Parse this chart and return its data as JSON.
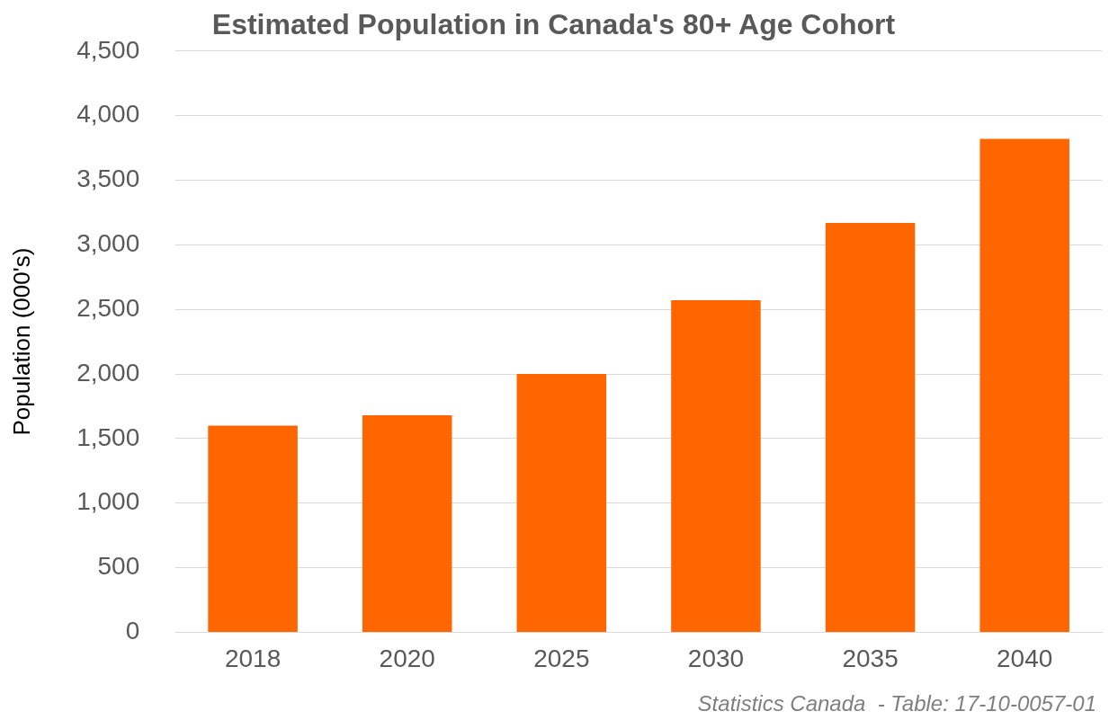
{
  "chart_data": {
    "type": "bar",
    "title": "Estimated Population in Canada's 80+ Age Cohort",
    "ylabel": "Population (000's)",
    "categories": [
      "2018",
      "2020",
      "2025",
      "2030",
      "2035",
      "2040"
    ],
    "values": [
      1600,
      1680,
      2000,
      2570,
      3170,
      3820
    ],
    "color": "#ff6600",
    "ylim": [
      0,
      4500
    ],
    "yticks": [
      {
        "value": 0,
        "label": "0"
      },
      {
        "value": 500,
        "label": "500"
      },
      {
        "value": 1000,
        "label": "1,000"
      },
      {
        "value": 1500,
        "label": "1,500"
      },
      {
        "value": 2000,
        "label": "2,000"
      },
      {
        "value": 2500,
        "label": "2,500"
      },
      {
        "value": 3000,
        "label": "3,000"
      },
      {
        "value": 3500,
        "label": "3,500"
      },
      {
        "value": 4000,
        "label": "4,000"
      },
      {
        "value": 4500,
        "label": "4,500"
      }
    ],
    "grid": "y",
    "annotations": [
      "Statistics Canada  - Table: 17-10-0057-01"
    ]
  }
}
